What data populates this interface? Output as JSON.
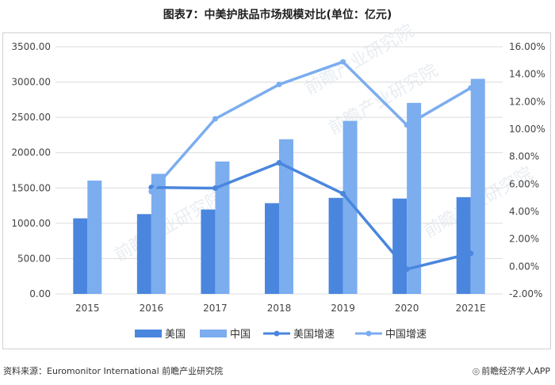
{
  "title": "图表7：中美护肤品市场规模对比(单位：亿元)",
  "source_label": "资料来源：",
  "source_text": "Euromonitor International 前瞻产业研究院",
  "brand_text": "前瞻经济学人APP",
  "watermark": "前瞻产业研究院",
  "chart_data": {
    "type": "bar",
    "categories": [
      "2015",
      "2016",
      "2017",
      "2018",
      "2019",
      "2020",
      "2021E"
    ],
    "series": [
      {
        "name": "美国",
        "type": "bar",
        "axis": "left",
        "color": "#4a86de",
        "values": [
          1070,
          1130,
          1195,
          1285,
          1360,
          1350,
          1370
        ]
      },
      {
        "name": "中国",
        "type": "bar",
        "axis": "left",
        "color": "#7badef",
        "values": [
          1605,
          1700,
          1875,
          2190,
          2450,
          2705,
          3045
        ]
      },
      {
        "name": "美国增速",
        "type": "line",
        "axis": "right",
        "color": "#4a86de",
        "values": [
          null,
          0.0575,
          0.057,
          0.0755,
          0.053,
          -0.002,
          0.0095
        ]
      },
      {
        "name": "中国增速",
        "type": "line",
        "axis": "right",
        "color": "#7badef",
        "values": [
          null,
          0.0545,
          0.1075,
          0.1325,
          0.149,
          0.103,
          0.13
        ]
      }
    ],
    "y_left": {
      "min": 0,
      "max": 3500,
      "ticks": [
        "0.00",
        "500.00",
        "1000.00",
        "1500.00",
        "2000.00",
        "2500.00",
        "3000.00",
        "3500.00"
      ]
    },
    "y_right": {
      "min": -0.02,
      "max": 0.16,
      "ticks": [
        "-2.00%",
        "0.00%",
        "2.00%",
        "4.00%",
        "6.00%",
        "8.00%",
        "10.00%",
        "12.00%",
        "14.00%",
        "16.00%"
      ]
    },
    "grid": true,
    "legend_position": "bottom"
  }
}
